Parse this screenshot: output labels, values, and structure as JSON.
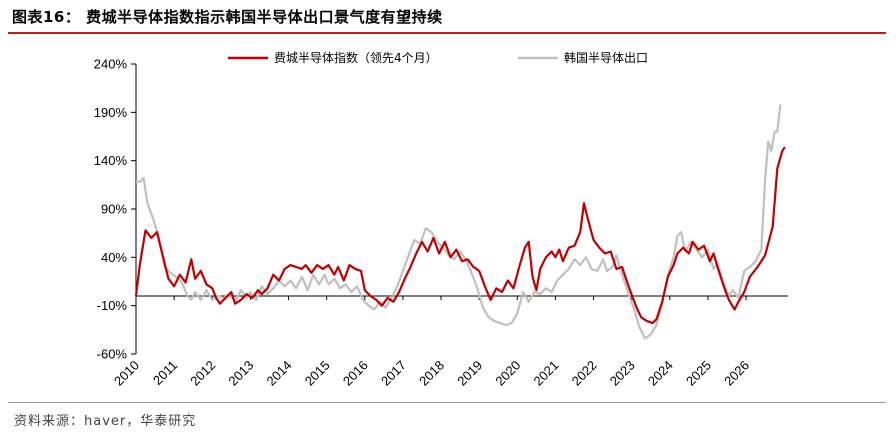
{
  "header": {
    "title": "图表16： 费城半导体指数指示韩国半导体出口景气度有望持续"
  },
  "footer": {
    "source": "资料来源：haver，华泰研究"
  },
  "colors": {
    "sox": "#c00000",
    "korea": "#c0c0c0",
    "title_rule": "#b22222"
  },
  "chart_data": {
    "type": "line",
    "title": "",
    "xlabel": "",
    "ylabel": "",
    "ylim": [
      -60,
      240
    ],
    "y_ticks": [
      -60,
      -10,
      40,
      90,
      140,
      190,
      240
    ],
    "y_tick_labels": [
      "-60%",
      "-10%",
      "40%",
      "90%",
      "140%",
      "190%",
      "240%"
    ],
    "x_tick_labels": [
      "2010",
      "2011",
      "2012",
      "2013",
      "2014",
      "2015",
      "2016",
      "2017",
      "2018",
      "2019",
      "2020",
      "2021",
      "2022",
      "2023",
      "2024",
      "2025",
      "2026"
    ],
    "x_range": [
      2010.0,
      2027.1
    ],
    "legend_position": "top",
    "series": [
      {
        "name": "费城半导体指数（领先4个月）",
        "color": "#c00000",
        "points": [
          [
            2010.0,
            0
          ],
          [
            2010.1,
            32
          ],
          [
            2010.25,
            68
          ],
          [
            2010.4,
            60
          ],
          [
            2010.55,
            66
          ],
          [
            2010.7,
            42
          ],
          [
            2010.85,
            18
          ],
          [
            2011.0,
            10
          ],
          [
            2011.15,
            22
          ],
          [
            2011.3,
            14
          ],
          [
            2011.45,
            38
          ],
          [
            2011.55,
            18
          ],
          [
            2011.7,
            26
          ],
          [
            2011.85,
            12
          ],
          [
            2012.0,
            8
          ],
          [
            2012.1,
            -2
          ],
          [
            2012.2,
            -8
          ],
          [
            2012.35,
            -2
          ],
          [
            2012.5,
            4
          ],
          [
            2012.6,
            -8
          ],
          [
            2012.75,
            -4
          ],
          [
            2012.9,
            2
          ],
          [
            2013.05,
            -2
          ],
          [
            2013.2,
            6
          ],
          [
            2013.3,
            2
          ],
          [
            2013.45,
            8
          ],
          [
            2013.6,
            22
          ],
          [
            2013.75,
            16
          ],
          [
            2013.9,
            28
          ],
          [
            2014.05,
            32
          ],
          [
            2014.2,
            30
          ],
          [
            2014.35,
            28
          ],
          [
            2014.45,
            32
          ],
          [
            2014.6,
            24
          ],
          [
            2014.75,
            32
          ],
          [
            2014.9,
            28
          ],
          [
            2015.05,
            32
          ],
          [
            2015.2,
            22
          ],
          [
            2015.3,
            30
          ],
          [
            2015.45,
            16
          ],
          [
            2015.6,
            32
          ],
          [
            2015.75,
            28
          ],
          [
            2015.9,
            26
          ],
          [
            2016.0,
            6
          ],
          [
            2016.15,
            0
          ],
          [
            2016.3,
            -4
          ],
          [
            2016.45,
            -10
          ],
          [
            2016.6,
            -2
          ],
          [
            2016.75,
            -6
          ],
          [
            2016.9,
            4
          ],
          [
            2017.05,
            18
          ],
          [
            2017.2,
            30
          ],
          [
            2017.35,
            44
          ],
          [
            2017.5,
            56
          ],
          [
            2017.65,
            46
          ],
          [
            2017.8,
            60
          ],
          [
            2017.95,
            44
          ],
          [
            2018.1,
            56
          ],
          [
            2018.25,
            40
          ],
          [
            2018.4,
            48
          ],
          [
            2018.55,
            36
          ],
          [
            2018.7,
            38
          ],
          [
            2018.85,
            30
          ],
          [
            2019.0,
            26
          ],
          [
            2019.15,
            10
          ],
          [
            2019.3,
            -4
          ],
          [
            2019.45,
            8
          ],
          [
            2019.6,
            4
          ],
          [
            2019.75,
            16
          ],
          [
            2019.9,
            8
          ],
          [
            2020.05,
            30
          ],
          [
            2020.2,
            50
          ],
          [
            2020.3,
            56
          ],
          [
            2020.4,
            20
          ],
          [
            2020.5,
            6
          ],
          [
            2020.6,
            28
          ],
          [
            2020.75,
            40
          ],
          [
            2020.9,
            46
          ],
          [
            2021.0,
            40
          ],
          [
            2021.1,
            48
          ],
          [
            2021.2,
            36
          ],
          [
            2021.35,
            50
          ],
          [
            2021.5,
            52
          ],
          [
            2021.65,
            66
          ],
          [
            2021.75,
            96
          ],
          [
            2021.85,
            80
          ],
          [
            2022.0,
            58
          ],
          [
            2022.15,
            50
          ],
          [
            2022.3,
            44
          ],
          [
            2022.45,
            46
          ],
          [
            2022.6,
            28
          ],
          [
            2022.75,
            30
          ],
          [
            2022.9,
            12
          ],
          [
            2023.05,
            -4
          ],
          [
            2023.15,
            -14
          ],
          [
            2023.25,
            -22
          ],
          [
            2023.4,
            -26
          ],
          [
            2023.55,
            -28
          ],
          [
            2023.65,
            -24
          ],
          [
            2023.8,
            -6
          ],
          [
            2023.95,
            20
          ],
          [
            2024.1,
            32
          ],
          [
            2024.2,
            44
          ],
          [
            2024.35,
            50
          ],
          [
            2024.5,
            44
          ],
          [
            2024.6,
            56
          ],
          [
            2024.75,
            48
          ],
          [
            2024.9,
            52
          ],
          [
            2025.05,
            36
          ],
          [
            2025.15,
            44
          ],
          [
            2025.25,
            30
          ],
          [
            2025.35,
            18
          ],
          [
            2025.45,
            6
          ],
          [
            2025.55,
            -4
          ],
          [
            2025.7,
            -14
          ],
          [
            2025.8,
            -6
          ],
          [
            2025.95,
            4
          ],
          [
            2026.1,
            20
          ],
          [
            2026.3,
            30
          ],
          [
            2026.5,
            42
          ],
          [
            2026.7,
            72
          ],
          [
            2026.82,
            132
          ],
          [
            2026.95,
            150
          ],
          [
            2027.02,
            154
          ]
        ]
      },
      {
        "name": "韩国半导体出口",
        "color": "#c0c0c0",
        "points": [
          [
            2010.0,
            118
          ],
          [
            2010.1,
            118
          ],
          [
            2010.2,
            122
          ],
          [
            2010.3,
            96
          ],
          [
            2010.45,
            80
          ],
          [
            2010.6,
            60
          ],
          [
            2010.75,
            30
          ],
          [
            2010.9,
            24
          ],
          [
            2011.05,
            20
          ],
          [
            2011.2,
            14
          ],
          [
            2011.35,
            0
          ],
          [
            2011.45,
            -4
          ],
          [
            2011.55,
            4
          ],
          [
            2011.7,
            -4
          ],
          [
            2011.85,
            6
          ],
          [
            2012.0,
            -4
          ],
          [
            2012.15,
            0
          ],
          [
            2012.3,
            -2
          ],
          [
            2012.45,
            2
          ],
          [
            2012.6,
            -6
          ],
          [
            2012.75,
            6
          ],
          [
            2012.9,
            -2
          ],
          [
            2013.0,
            4
          ],
          [
            2013.15,
            -4
          ],
          [
            2013.3,
            10
          ],
          [
            2013.45,
            2
          ],
          [
            2013.6,
            8
          ],
          [
            2013.75,
            16
          ],
          [
            2013.9,
            10
          ],
          [
            2014.05,
            16
          ],
          [
            2014.2,
            8
          ],
          [
            2014.35,
            20
          ],
          [
            2014.5,
            6
          ],
          [
            2014.65,
            22
          ],
          [
            2014.8,
            12
          ],
          [
            2014.95,
            22
          ],
          [
            2015.05,
            12
          ],
          [
            2015.2,
            18
          ],
          [
            2015.35,
            8
          ],
          [
            2015.5,
            12
          ],
          [
            2015.65,
            4
          ],
          [
            2015.8,
            10
          ],
          [
            2015.95,
            -4
          ],
          [
            2016.1,
            -10
          ],
          [
            2016.25,
            -14
          ],
          [
            2016.4,
            -6
          ],
          [
            2016.55,
            -12
          ],
          [
            2016.7,
            -2
          ],
          [
            2016.85,
            10
          ],
          [
            2017.0,
            26
          ],
          [
            2017.15,
            42
          ],
          [
            2017.3,
            58
          ],
          [
            2017.45,
            54
          ],
          [
            2017.6,
            70
          ],
          [
            2017.75,
            66
          ],
          [
            2017.9,
            56
          ],
          [
            2018.05,
            50
          ],
          [
            2018.2,
            42
          ],
          [
            2018.35,
            38
          ],
          [
            2018.5,
            46
          ],
          [
            2018.65,
            38
          ],
          [
            2018.8,
            24
          ],
          [
            2018.95,
            8
          ],
          [
            2019.1,
            -12
          ],
          [
            2019.25,
            -22
          ],
          [
            2019.4,
            -26
          ],
          [
            2019.55,
            -28
          ],
          [
            2019.7,
            -30
          ],
          [
            2019.85,
            -28
          ],
          [
            2020.0,
            -18
          ],
          [
            2020.15,
            4
          ],
          [
            2020.3,
            -6
          ],
          [
            2020.45,
            4
          ],
          [
            2020.6,
            2
          ],
          [
            2020.75,
            8
          ],
          [
            2020.9,
            4
          ],
          [
            2021.05,
            16
          ],
          [
            2021.2,
            22
          ],
          [
            2021.35,
            28
          ],
          [
            2021.5,
            38
          ],
          [
            2021.65,
            32
          ],
          [
            2021.8,
            40
          ],
          [
            2021.95,
            28
          ],
          [
            2022.1,
            26
          ],
          [
            2022.25,
            38
          ],
          [
            2022.35,
            26
          ],
          [
            2022.5,
            30
          ],
          [
            2022.6,
            42
          ],
          [
            2022.75,
            22
          ],
          [
            2022.9,
            4
          ],
          [
            2023.05,
            -12
          ],
          [
            2023.2,
            -32
          ],
          [
            2023.35,
            -44
          ],
          [
            2023.5,
            -40
          ],
          [
            2023.65,
            -30
          ],
          [
            2023.8,
            -8
          ],
          [
            2023.95,
            22
          ],
          [
            2024.1,
            40
          ],
          [
            2024.2,
            62
          ],
          [
            2024.3,
            66
          ],
          [
            2024.4,
            46
          ],
          [
            2024.55,
            56
          ],
          [
            2024.7,
            48
          ],
          [
            2024.85,
            40
          ],
          [
            2025.0,
            48
          ],
          [
            2025.15,
            28
          ],
          [
            2025.25,
            34
          ],
          [
            2025.4,
            14
          ],
          [
            2025.55,
            0
          ],
          [
            2025.65,
            6
          ],
          [
            2025.8,
            -2
          ],
          [
            2025.95,
            26
          ],
          [
            2026.1,
            30
          ],
          [
            2026.25,
            36
          ],
          [
            2026.4,
            48
          ],
          [
            2026.5,
            120
          ],
          [
            2026.58,
            160
          ],
          [
            2026.66,
            150
          ],
          [
            2026.75,
            170
          ],
          [
            2026.82,
            170
          ],
          [
            2026.9,
            198
          ]
        ]
      }
    ]
  }
}
